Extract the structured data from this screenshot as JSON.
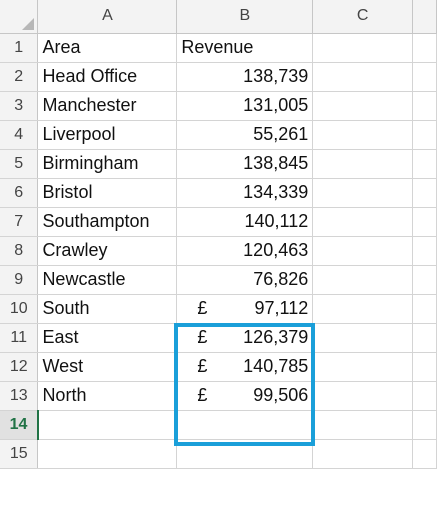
{
  "columns": [
    "A",
    "B",
    "C"
  ],
  "rows": [
    {
      "n": "1",
      "a": "Area",
      "b": "Revenue",
      "cur": ""
    },
    {
      "n": "2",
      "a": "Head Office",
      "b": "138,739",
      "cur": ""
    },
    {
      "n": "3",
      "a": "Manchester",
      "b": "131,005",
      "cur": ""
    },
    {
      "n": "4",
      "a": "Liverpool",
      "b": "55,261",
      "cur": ""
    },
    {
      "n": "5",
      "a": "Birmingham",
      "b": "138,845",
      "cur": ""
    },
    {
      "n": "6",
      "a": "Bristol",
      "b": "134,339",
      "cur": ""
    },
    {
      "n": "7",
      "a": "Southampton",
      "b": "140,112",
      "cur": ""
    },
    {
      "n": "8",
      "a": "Crawley",
      "b": "120,463",
      "cur": ""
    },
    {
      "n": "9",
      "a": "Newcastle",
      "b": "76,826",
      "cur": ""
    },
    {
      "n": "10",
      "a": "South",
      "b": "97,112",
      "cur": "£"
    },
    {
      "n": "11",
      "a": "East",
      "b": "126,379",
      "cur": "£"
    },
    {
      "n": "12",
      "a": "West",
      "b": "140,785",
      "cur": "£"
    },
    {
      "n": "13",
      "a": "North",
      "b": "99,506",
      "cur": "£"
    },
    {
      "n": "14",
      "a": "",
      "b": "",
      "cur": ""
    },
    {
      "n": "15",
      "a": "",
      "b": "",
      "cur": ""
    }
  ],
  "active_row": "14",
  "highlight_color": "#1a9fd9"
}
